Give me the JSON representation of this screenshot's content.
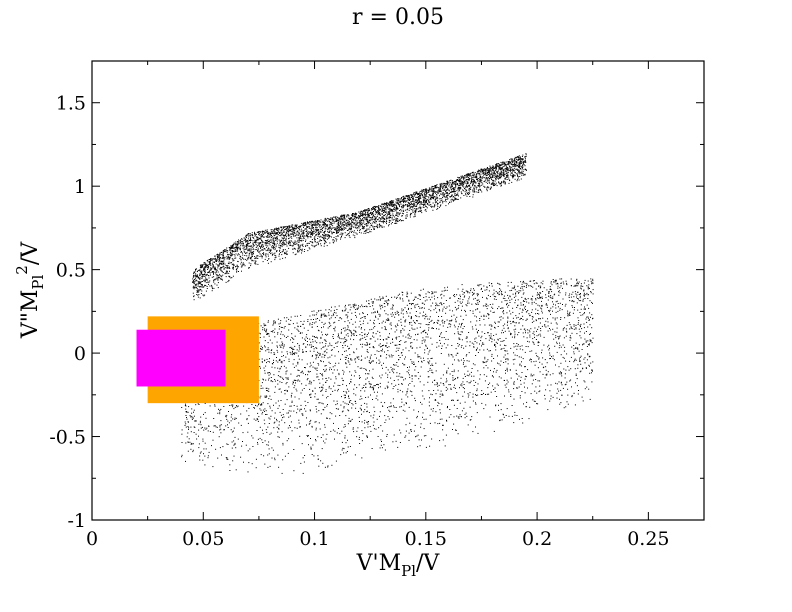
{
  "chart_data": {
    "type": "scatter",
    "title": "r = 0.05",
    "xlabel": {
      "main": "V'M",
      "sub": "Pl",
      "tail": "/V"
    },
    "ylabel": {
      "main": "V\"M",
      "sub": "Pl",
      "sup": "2",
      "tail": "/V"
    },
    "xlim": [
      0,
      0.275
    ],
    "ylim": [
      -1,
      1.75
    ],
    "x_ticks": [
      0,
      0.05,
      0.1,
      0.15,
      0.2,
      0.25
    ],
    "x_tick_labels": [
      "0",
      "0.05",
      "0.1",
      "0.15",
      "0.2",
      "0.25"
    ],
    "y_ticks": [
      -1,
      -0.5,
      0,
      0.5,
      1,
      1.5
    ],
    "y_tick_labels": [
      "-1",
      "-0.5",
      "0",
      "0.5",
      "1",
      "1.5"
    ],
    "grid": false,
    "series": [
      {
        "color": "#000000",
        "regions": [
          {
            "x_range": [
              0.045,
              0.195
            ],
            "lower_edge": [
              [
                0.045,
                0.3
              ],
              [
                0.07,
                0.5
              ],
              [
                0.12,
                0.7
              ],
              [
                0.195,
                1.05
              ]
            ],
            "upper_edge": [
              [
                0.045,
                0.5
              ],
              [
                0.07,
                0.72
              ],
              [
                0.12,
                0.85
              ],
              [
                0.195,
                1.2
              ]
            ]
          },
          {
            "x_range": [
              0.04,
              0.225
            ],
            "lower_edge": [
              [
                0.04,
                -0.7
              ],
              [
                0.08,
                -0.75
              ],
              [
                0.15,
                -0.6
              ],
              [
                0.225,
                -0.3
              ]
            ],
            "upper_edge": [
              [
                0.04,
                0.1
              ],
              [
                0.08,
                0.2
              ],
              [
                0.15,
                0.4
              ],
              [
                0.21,
                0.45
              ]
            ]
          }
        ]
      },
      {
        "color": "#ffa500",
        "regions": [
          {
            "x_range": [
              0.025,
              0.075
            ],
            "y_range": [
              -0.3,
              0.22
            ]
          }
        ]
      },
      {
        "color": "#ff00ff",
        "regions": [
          {
            "x_range": [
              0.02,
              0.06
            ],
            "y_range": [
              -0.2,
              0.14
            ]
          }
        ]
      }
    ]
  }
}
